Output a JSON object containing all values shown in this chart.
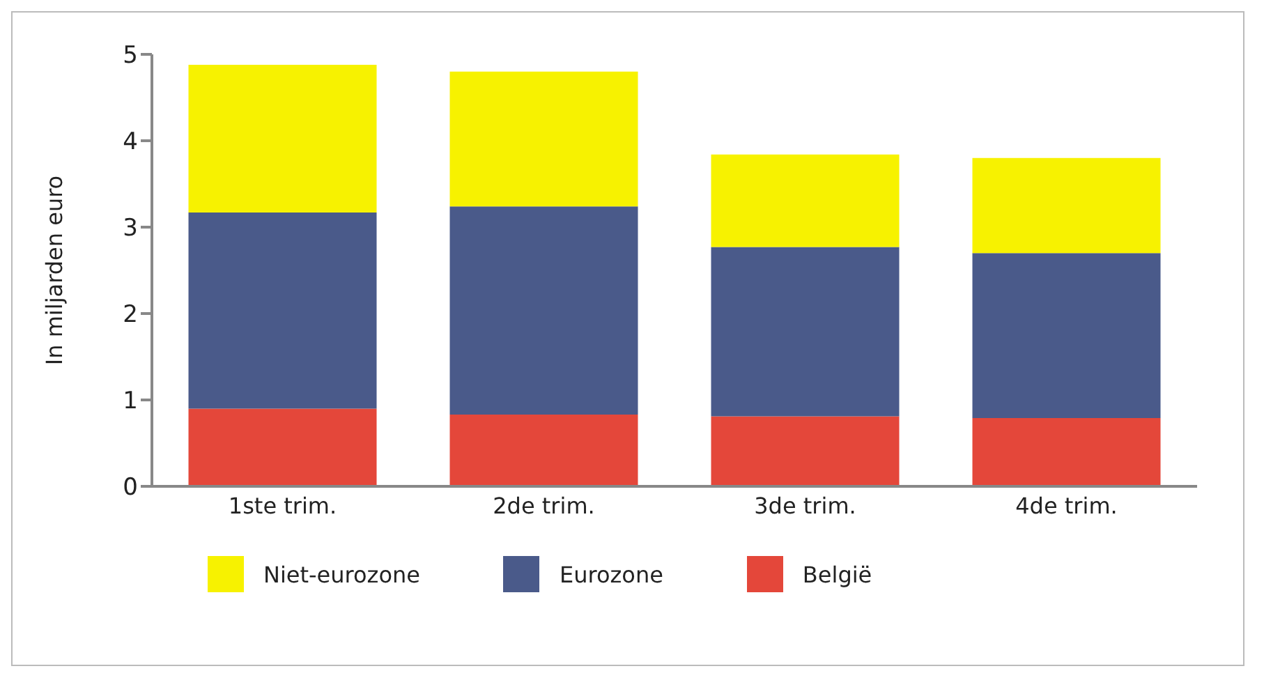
{
  "chart_data": {
    "type": "bar",
    "stacked": true,
    "ylabel": "In miljarden euro",
    "categories": [
      "1ste trim.",
      "2de trim.",
      "3de trim.",
      "4de trim."
    ],
    "series": [
      {
        "name": "België",
        "color": "#e4473a",
        "values": [
          0.9,
          0.83,
          0.81,
          0.79
        ]
      },
      {
        "name": "Eurozone",
        "color": "#4a5a8a",
        "values": [
          2.27,
          2.41,
          1.96,
          1.91
        ]
      },
      {
        "name": "Niet-eurozone",
        "color": "#f7f200",
        "values": [
          1.71,
          1.56,
          1.07,
          1.1
        ]
      }
    ],
    "ylim": [
      0,
      5
    ],
    "yticks": [
      0,
      1,
      2,
      3,
      4,
      5
    ],
    "grid": false,
    "legend": "bottom"
  }
}
